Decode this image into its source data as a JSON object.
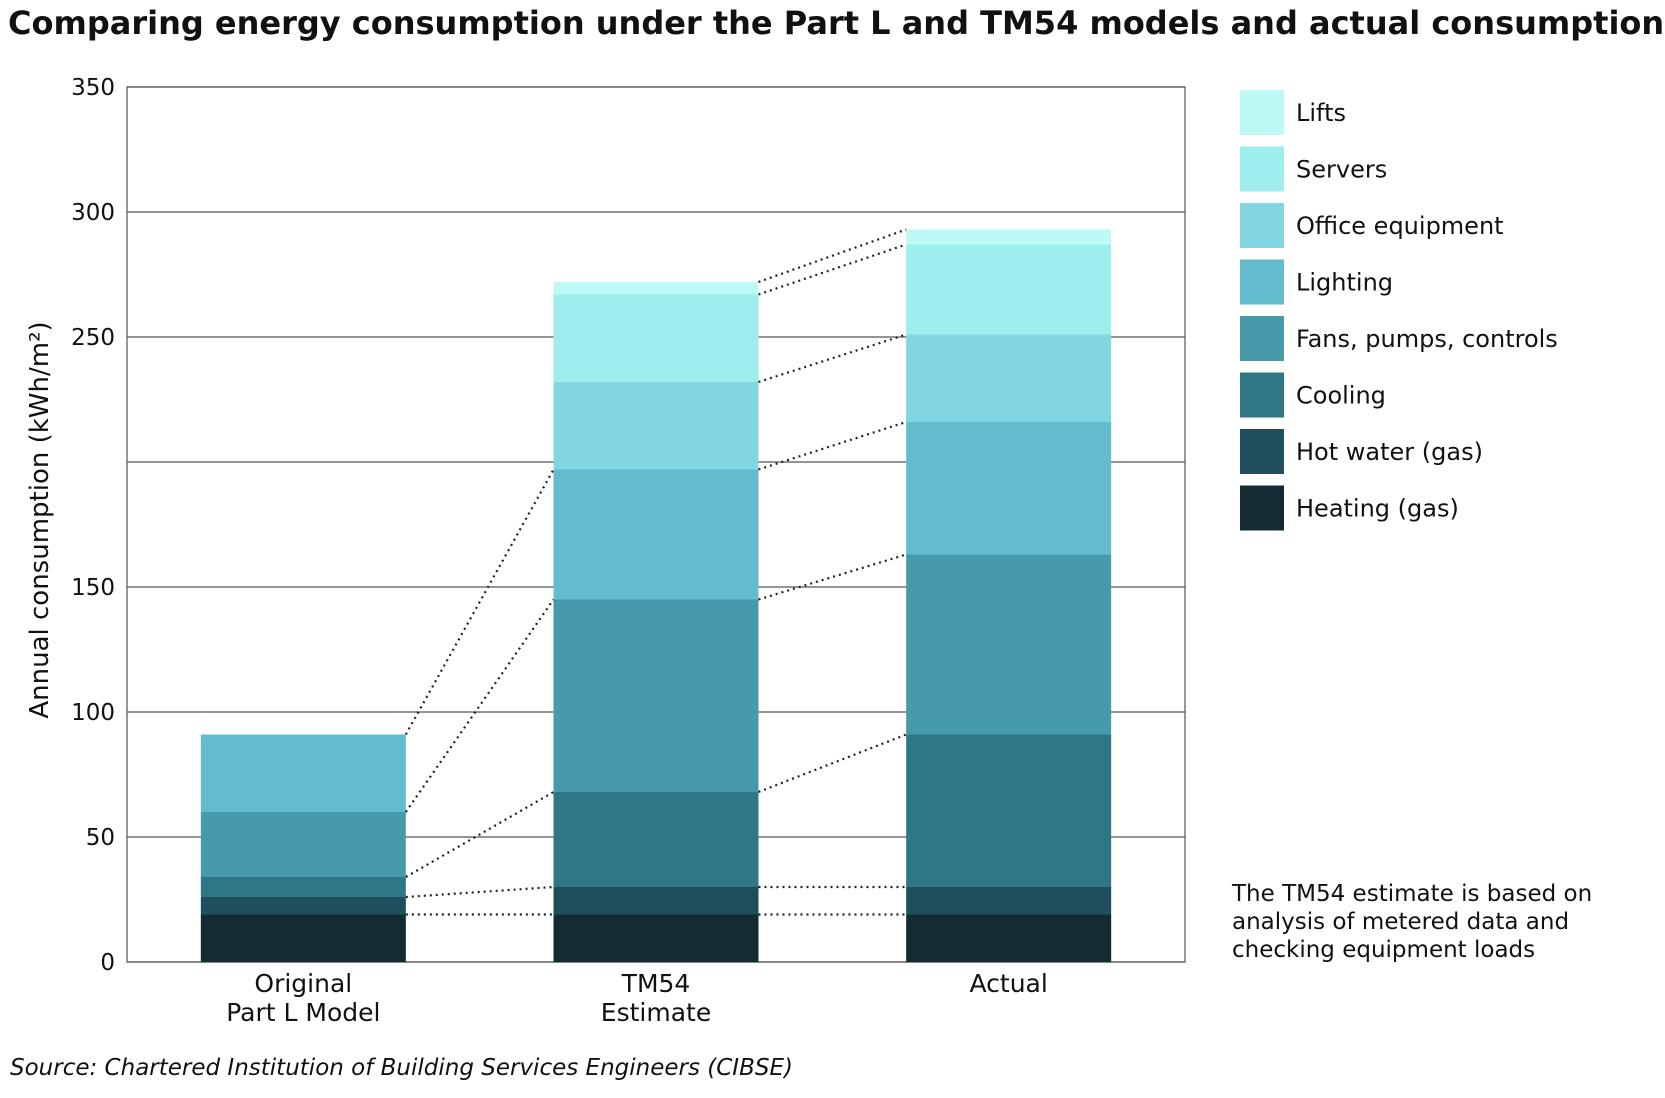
{
  "chart_data": {
    "type": "stacked_bar",
    "title": "Comparing energy consumption under the Part L and TM54 models and actual consumption",
    "y_label": "Annual consumption (kWh/m²)",
    "categories": [
      "Original\nPart L Model",
      "TM54\nEstimate",
      "Actual"
    ],
    "series": [
      {
        "name": "Heating (gas)",
        "color": "#152b34",
        "values": [
          19,
          19,
          19
        ]
      },
      {
        "name": "Hot water (gas)",
        "color": "#1f4f5d",
        "values": [
          7,
          11,
          11
        ]
      },
      {
        "name": "Cooling",
        "color": "#2f7787",
        "values": [
          8,
          38,
          61
        ]
      },
      {
        "name": "Fans, pumps, controls",
        "color": "#479aac",
        "values": [
          26,
          77,
          72
        ]
      },
      {
        "name": "Lighting",
        "color": "#63bbce",
        "values": [
          31,
          52,
          53
        ]
      },
      {
        "name": "Office equipment",
        "color": "#81d6e1",
        "values": [
          0,
          35,
          35
        ]
      },
      {
        "name": "Servers",
        "color": "#9deeed",
        "values": [
          0,
          35,
          36
        ]
      },
      {
        "name": "Lifts",
        "color": "#bef9f6",
        "values": [
          0,
          5,
          6
        ]
      }
    ],
    "ylim": [
      0,
      350
    ],
    "yticks": [
      0,
      50,
      100,
      150,
      {
        "value": 200,
        "label": null
      },
      250,
      300,
      350
    ],
    "grid": true,
    "legend": "right",
    "note": "The TM54 estimate is based on analysis of metered data and checking equipment loads",
    "source": "Source: Chartered Institution of Building Services Engineers (CIBSE)"
  }
}
